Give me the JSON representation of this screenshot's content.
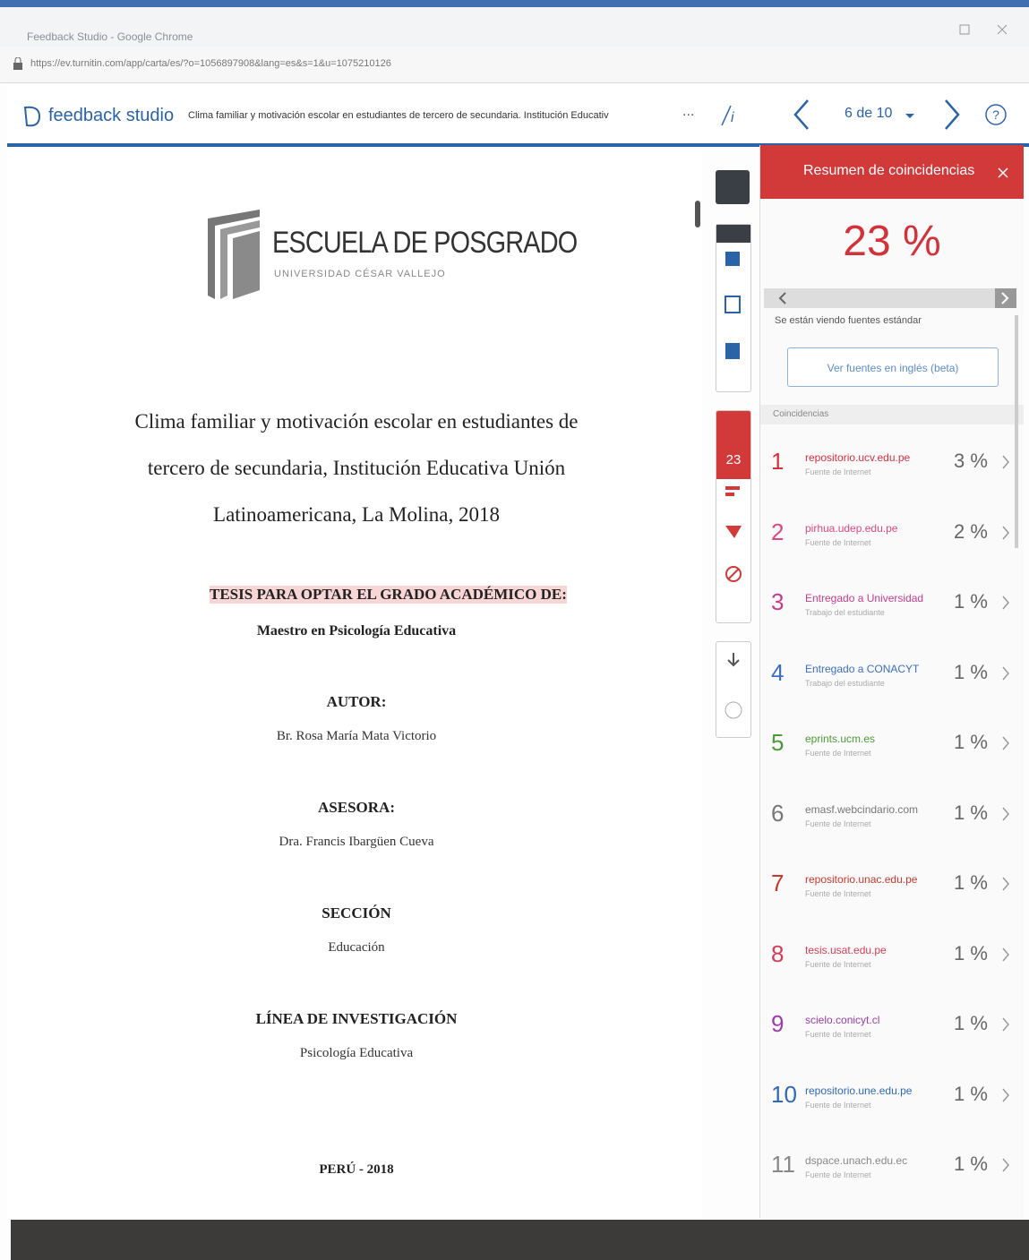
{
  "browser": {
    "tab_title": "Feedback Studio - Google Chrome",
    "url": "https://ev.turnitin.com/app/carta/es/?o=1056897908&lang=es&s=1&u=1075210126"
  },
  "toolbar": {
    "brand": "feedback studio",
    "document_title": "Clima familiar y motivación escolar en estudiantes de tercero de secundaria. Institución Educativ",
    "more": "...",
    "page_count": "6 de 10"
  },
  "document": {
    "school": "ESCUELA DE POSGRADO",
    "university": "UNIVERSIDAD CÉSAR VALLEJO",
    "title_lines": [
      "Clima familiar y motivación escolar en estudiantes de",
      "tercero de secundaria, Institución Educativa Unión",
      "Latinoamericana, La Molina, 2018"
    ],
    "degree": "TESIS PARA OPTAR EL GRADO ACADÉMICO DE:",
    "degree_name": "Maestro en Psicología Educativa",
    "sections": [
      {
        "heading": "AUTOR:",
        "text": "Br. Rosa María Mata Victorio"
      },
      {
        "heading": "ASESORA:",
        "text": "Dra. Francis Ibargüen Cueva"
      },
      {
        "heading": "SECCIÓN",
        "text": "Educación"
      },
      {
        "heading": "LÍNEA DE INVESTIGACIÓN",
        "text": "Psicología Educativa"
      }
    ],
    "footer": "PERÚ - 2018"
  },
  "side_toolbar": {
    "match_badge": "23"
  },
  "panel": {
    "title": "Resumen de coincidencias",
    "similarity": "23 %",
    "notice": "Se están viendo fuentes estándar",
    "english_button": "Ver fuentes en inglés (beta)",
    "list_label": "Coincidencias",
    "matches": [
      {
        "number": "1",
        "source": "repositorio.ucv.edu.pe",
        "type": "Fuente de Internet",
        "percent": "3 %",
        "color": "#d6303e"
      },
      {
        "number": "2",
        "source": "pirhua.udep.edu.pe",
        "type": "Fuente de Internet",
        "percent": "2 %",
        "color": "#e0487b"
      },
      {
        "number": "3",
        "source": "Entregado a Universidad",
        "type": "Trabajo del estudiante",
        "percent": "1 %",
        "color": "#c43d8e"
      },
      {
        "number": "4",
        "source": "Entregado a CONACYT",
        "type": "Trabajo del estudiante",
        "percent": "1 %",
        "color": "#3c6fbf"
      },
      {
        "number": "5",
        "source": "eprints.ucm.es",
        "type": "Fuente de Internet",
        "percent": "1 %",
        "color": "#4c9a3a"
      },
      {
        "number": "6",
        "source": "emasf.webcindario.com",
        "type": "Fuente de Internet",
        "percent": "1 %",
        "color": "#777777"
      },
      {
        "number": "7",
        "source": "repositorio.unac.edu.pe",
        "type": "Fuente de Internet",
        "percent": "1 %",
        "color": "#c8372d"
      },
      {
        "number": "8",
        "source": "tesis.usat.edu.pe",
        "type": "Fuente de Internet",
        "percent": "1 %",
        "color": "#d63b58"
      },
      {
        "number": "9",
        "source": "scielo.conicyt.cl",
        "type": "Fuente de Internet",
        "percent": "1 %",
        "color": "#9a3fa8"
      },
      {
        "number": "10",
        "source": "repositorio.une.edu.pe",
        "type": "Fuente de Internet",
        "percent": "1 %",
        "color": "#2f69b8"
      },
      {
        "number": "11",
        "source": "dspace.unach.edu.ec",
        "type": "Fuente de Internet",
        "percent": "1 %",
        "color": "#888888"
      }
    ]
  }
}
